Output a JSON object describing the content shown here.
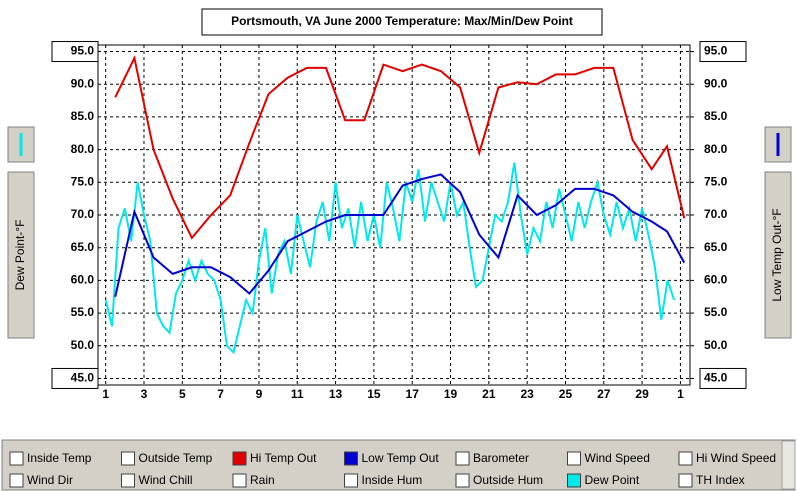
{
  "chart_data": {
    "type": "line",
    "title": "Portsmouth, VA  June 2000 Temperature: Max/Min/Dew Point",
    "ylabel": "Dew Point-°F",
    "y2label": "Low Temp Out-°F",
    "xlim": [
      0.6,
      31.5
    ],
    "xticks": [
      1,
      3,
      5,
      7,
      9,
      11,
      13,
      15,
      17,
      19,
      21,
      23,
      25,
      27,
      29,
      {
        "value": 31,
        "label": "1"
      }
    ],
    "ylim": [
      44,
      96
    ],
    "yticks": [
      {
        "value": 45,
        "label": "45.0"
      },
      {
        "value": 50,
        "label": "50.0"
      },
      {
        "value": 55,
        "label": "55.0"
      },
      {
        "value": 60,
        "label": "60.0"
      },
      {
        "value": 65,
        "label": "65.0"
      },
      {
        "value": 70,
        "label": "70.0"
      },
      {
        "value": 75,
        "label": "75.0"
      },
      {
        "value": 80,
        "label": "80.0"
      },
      {
        "value": 85,
        "label": "85.0"
      },
      {
        "value": 90,
        "label": "90.0"
      },
      {
        "value": 95,
        "label": "95.0"
      }
    ],
    "y2lim": [
      44,
      96
    ],
    "y2ticks": [
      {
        "value": 45,
        "label": "45.0"
      },
      {
        "value": 50,
        "label": "50.0"
      },
      {
        "value": 55,
        "label": "55.0"
      },
      {
        "value": 60,
        "label": "60.0"
      },
      {
        "value": 65,
        "label": "65.0"
      },
      {
        "value": 70,
        "label": "70.0"
      },
      {
        "value": 75,
        "label": "75.0"
      },
      {
        "value": 80,
        "label": "80.0"
      },
      {
        "value": 85,
        "label": "85.0"
      },
      {
        "value": 90,
        "label": "90.0"
      },
      {
        "value": 95,
        "label": "95.0"
      }
    ],
    "grid": true,
    "series": [
      {
        "name": "Hi Temp Out",
        "color": "#e00000",
        "x": [
          1.5,
          2.5,
          3.5,
          4.5,
          5.5,
          6.5,
          7.5,
          8.5,
          9.5,
          10.5,
          11.5,
          12.5,
          13.5,
          14.5,
          15.5,
          16.5,
          17.5,
          18.5,
          19.5,
          20.5,
          21.5,
          22.5,
          23.5,
          24.5,
          25.5,
          26.5,
          27.5,
          28.5,
          29.5,
          30.3,
          31.2
        ],
        "values": [
          88,
          94,
          80,
          72.5,
          66.5,
          70,
          73,
          81,
          88.5,
          91,
          92.5,
          92.5,
          84.5,
          84.5,
          93,
          92,
          93,
          92,
          89.5,
          79.5,
          89.5,
          90.3,
          90,
          91.5,
          91.5,
          92.5,
          92.5,
          81.5,
          77,
          80.5,
          69.5
        ]
      },
      {
        "name": "Low Temp Out",
        "color": "#0000d0",
        "axis": "y2",
        "x": [
          1.5,
          2.5,
          3.5,
          4.5,
          5.5,
          6.5,
          7.5,
          8.5,
          9.5,
          10.5,
          11.5,
          12.5,
          13.5,
          14.5,
          15.5,
          16.5,
          17.5,
          18.5,
          19.5,
          20.5,
          21.5,
          22.5,
          23.5,
          24.5,
          25.5,
          26.5,
          27.5,
          28.5,
          29.5,
          30.3,
          31.2
        ],
        "values": [
          57.5,
          70.5,
          63.5,
          61,
          62,
          62,
          60.5,
          58,
          61.5,
          66,
          67.5,
          69,
          70,
          70,
          70,
          74.5,
          75.5,
          76.2,
          73.5,
          67,
          63.5,
          73,
          70,
          71.5,
          74,
          74,
          73,
          70.5,
          69,
          67.5,
          62.7
        ]
      },
      {
        "name": "Dew Point",
        "color": "#00e8e8",
        "x": [
          1,
          1.33,
          1.67,
          2,
          2.33,
          2.67,
          3,
          3.33,
          3.67,
          4,
          4.33,
          4.67,
          5,
          5.33,
          5.67,
          6,
          6.33,
          6.67,
          7,
          7.33,
          7.67,
          8,
          8.33,
          8.67,
          9,
          9.33,
          9.67,
          10,
          10.33,
          10.67,
          11,
          11.33,
          11.67,
          12,
          12.33,
          12.67,
          13,
          13.33,
          13.67,
          14,
          14.33,
          14.67,
          15,
          15.33,
          15.67,
          16,
          16.33,
          16.67,
          17,
          17.33,
          17.67,
          18,
          18.33,
          18.67,
          19,
          19.33,
          19.67,
          20,
          20.33,
          20.67,
          21,
          21.33,
          21.67,
          22,
          22.33,
          22.67,
          23,
          23.33,
          23.67,
          24,
          24.33,
          24.67,
          25,
          25.33,
          25.67,
          26,
          26.33,
          26.67,
          27,
          27.33,
          27.67,
          28,
          28.33,
          28.67,
          29,
          29.33,
          29.67,
          30,
          30.33,
          30.67
        ],
        "values": [
          57,
          53,
          68,
          71,
          66,
          75,
          70,
          66,
          55,
          53,
          52,
          58,
          60,
          63,
          60,
          63,
          61,
          60,
          57,
          50,
          49,
          53,
          57,
          55,
          63,
          68,
          58,
          64,
          66,
          61,
          70,
          66,
          62,
          69,
          72,
          66,
          75,
          68,
          71,
          65,
          72,
          66,
          70,
          65,
          75,
          71,
          66,
          75,
          72,
          77,
          69,
          75,
          72,
          69,
          75,
          70,
          72,
          65,
          59,
          60,
          65,
          70,
          69,
          72,
          78,
          70,
          64,
          68,
          66,
          72,
          68,
          74,
          70,
          66,
          72,
          68,
          72,
          75,
          70,
          67,
          72,
          68,
          71,
          66,
          71,
          67,
          62,
          54,
          60,
          57
        ]
      }
    ]
  },
  "checkboxes": [
    "Inside Temp",
    "Outside Temp",
    "Hi Temp Out",
    "Low Temp Out",
    "Barometer",
    "Wind Speed",
    "Hi Wind Speed",
    "Wind Dir",
    "Wind Chill",
    "Rain",
    "Inside Hum",
    "Outside Hum",
    "Dew Point",
    "TH Index"
  ]
}
